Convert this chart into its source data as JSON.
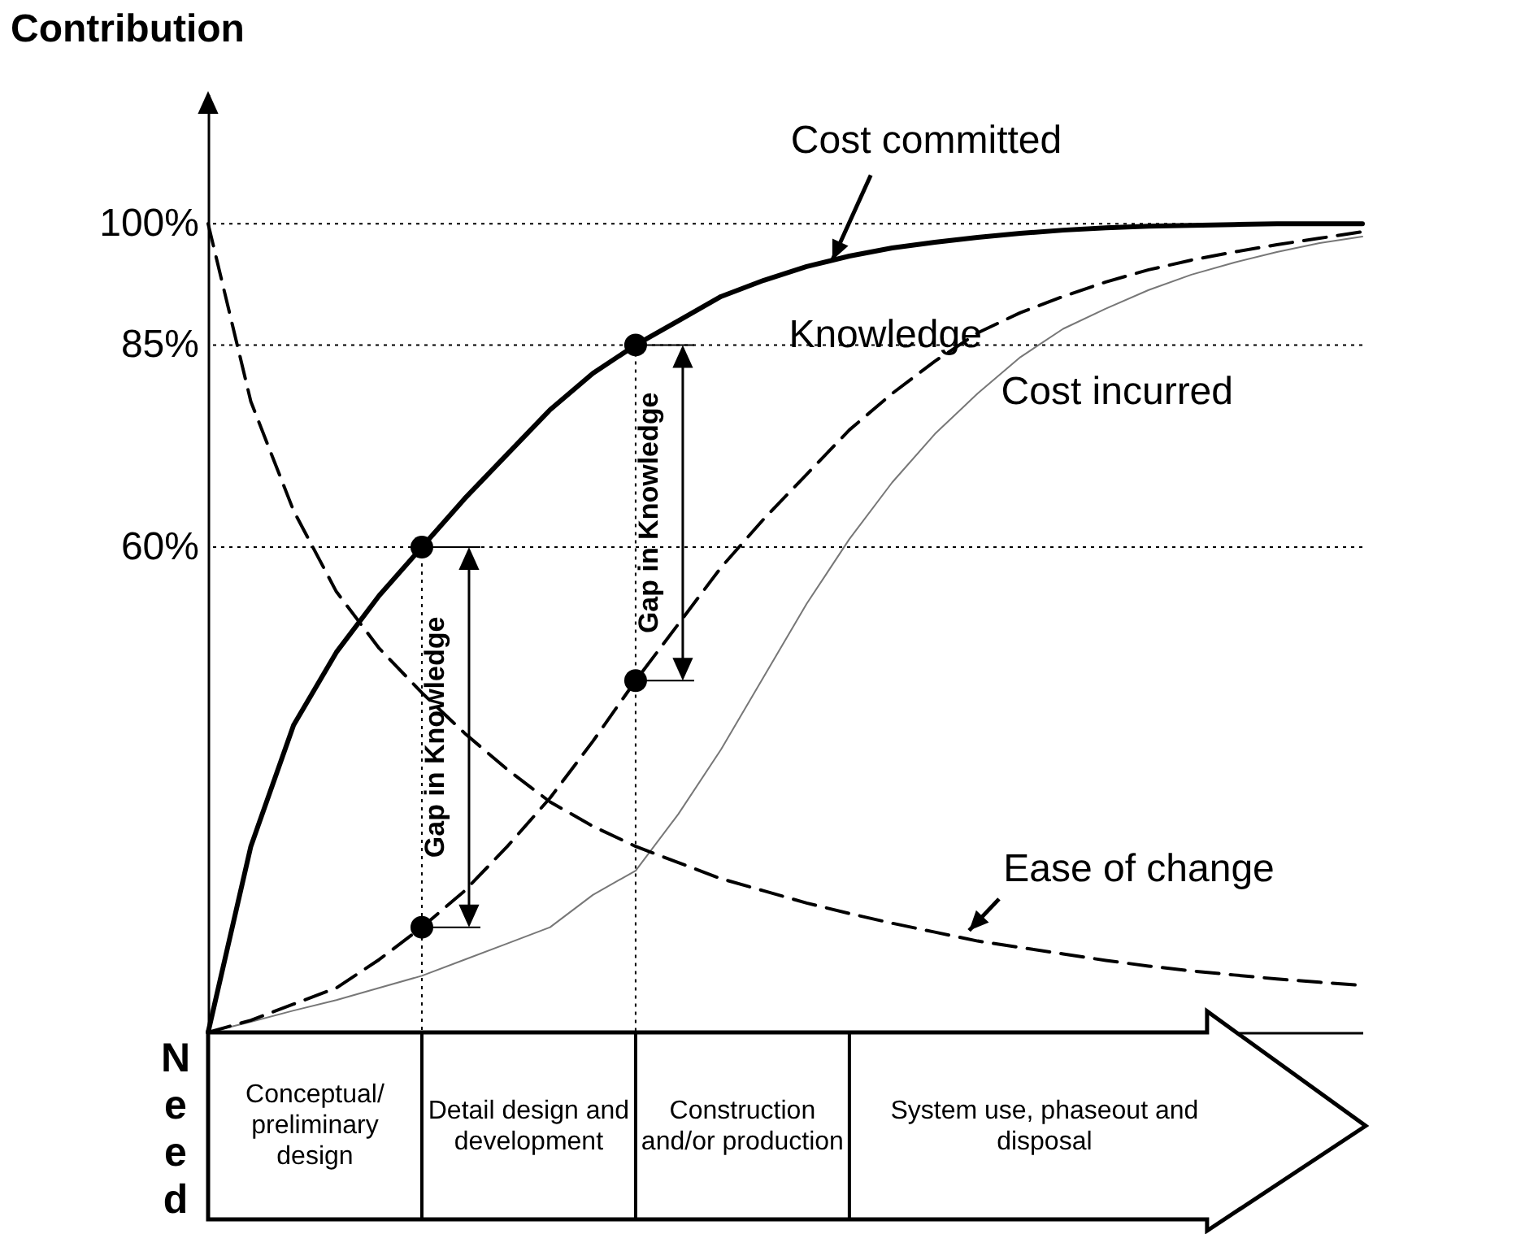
{
  "chart_data": {
    "type": "line",
    "ylabel": "Contribution",
    "ylim": [
      0,
      116
    ],
    "yticks": [
      {
        "value": 60,
        "label": "60%"
      },
      {
        "value": 85,
        "label": "85%"
      },
      {
        "value": 100,
        "label": "100%"
      }
    ],
    "tick_labels": "y",
    "marker": "none",
    "categories": [
      null,
      null,
      null,
      null,
      null,
      null,
      null,
      null,
      null,
      null,
      null,
      null,
      null,
      null,
      null,
      null,
      null,
      null,
      null,
      null,
      null,
      null,
      null,
      null,
      null,
      null,
      null,
      null
    ],
    "series": [
      {
        "name": "Cost committed",
        "color": "#000000",
        "line_style": "solid",
        "values": [
          0,
          23,
          38,
          47,
          54,
          60,
          66,
          71.5,
          77,
          81.5,
          85,
          88,
          91,
          93,
          94.7,
          96,
          97,
          97.7,
          98.3,
          98.8,
          99.2,
          99.5,
          99.7,
          99.8,
          99.9,
          100,
          100,
          100
        ]
      },
      {
        "name": "Cost incurred",
        "color": "#777777",
        "line_style": "solid",
        "values": [
          0,
          1.3,
          2.7,
          4,
          5.5,
          7,
          9,
          11,
          13,
          17,
          20,
          27,
          35,
          44,
          53,
          61,
          68,
          74,
          79,
          83.5,
          87,
          89.5,
          91.8,
          93.7,
          95.2,
          96.5,
          97.6,
          98.4
        ]
      },
      {
        "name": "Knowledge",
        "color": "#000000",
        "line_style": "dashed",
        "values": [
          0,
          1.5,
          3.5,
          5.5,
          9,
          13,
          17.5,
          23,
          29,
          36,
          43.5,
          50.5,
          57.5,
          63.5,
          69,
          74.5,
          79,
          83,
          86.5,
          89,
          91,
          92.8,
          94.3,
          95.5,
          96.5,
          97.4,
          98.2,
          99
        ]
      },
      {
        "name": "Ease of change",
        "color": "#000000",
        "line_style": "dashed",
        "values": [
          100,
          78,
          64.5,
          54.5,
          47.5,
          42,
          37,
          32.5,
          28.5,
          25.5,
          23,
          21,
          19,
          17.5,
          16,
          14.7,
          13.5,
          12.4,
          11.3,
          10.5,
          9.7,
          8.9,
          8.2,
          7.6,
          7.1,
          6.6,
          6.2,
          5.8
        ]
      }
    ],
    "ref_lines": [
      {
        "axis": "y",
        "value": 100,
        "line_style": "dotted"
      },
      {
        "axis": "y",
        "value": 85,
        "line_style": "dotted"
      },
      {
        "axis": "y",
        "value": 60,
        "line_style": "dotted"
      }
    ],
    "annotations": [
      "Gap in Knowledge",
      "Gap in Knowledge",
      "Need",
      "Conceptual/ preliminary design",
      "Detail design and development",
      "Construction and/or production",
      "System use, phaseout and disposal"
    ]
  }
}
